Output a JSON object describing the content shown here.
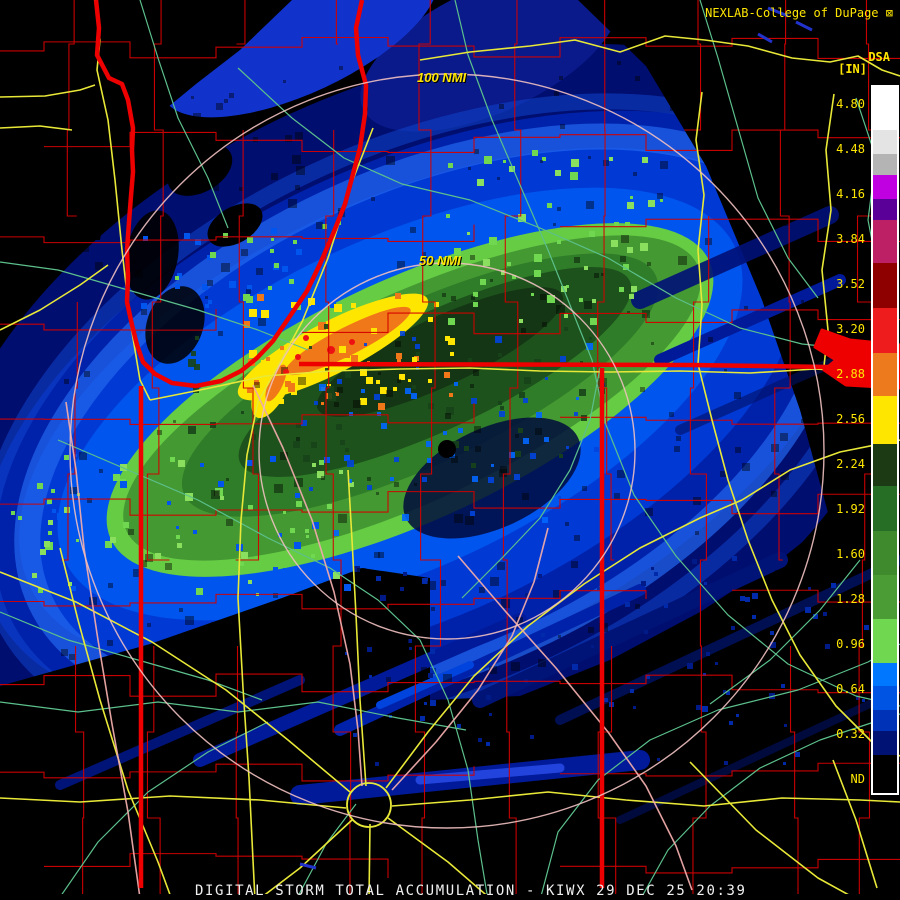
{
  "header": {
    "title": "NEXLAB-College of DuPage",
    "window_glyph": "⊠"
  },
  "product": {
    "code": "DSA",
    "unit": "[IN]"
  },
  "rings": {
    "outer_label": "100 NMI",
    "inner_label": "50 NMI"
  },
  "footer": {
    "caption": "DIGITAL STORM TOTAL ACCUMULATION - KIWX 29 DEC 25 20:39"
  },
  "colorbar": {
    "labels": [
      "4.80",
      "4.48",
      "4.16",
      "3.84",
      "3.52",
      "3.20",
      "2.88",
      "2.56",
      "2.24",
      "1.92",
      "1.60",
      "1.28",
      "0.96",
      "0.64",
      "0.32",
      "ND"
    ],
    "segments": [
      {
        "c": "#ffffff",
        "h": 43
      },
      {
        "c": "#e4e4e4",
        "h": 24
      },
      {
        "c": "#b4b4b4",
        "h": 21
      },
      {
        "c": "#c000e0",
        "h": 24
      },
      {
        "c": "#5a0099",
        "h": 21
      },
      {
        "c": "#bd2064",
        "h": 43
      },
      {
        "c": "#8e0000",
        "h": 45
      },
      {
        "c": "#ee1c1c",
        "h": 45
      },
      {
        "c": "#ee7a1e",
        "h": 43
      },
      {
        "c": "#ffe600",
        "h": 48
      },
      {
        "c": "#1c3b15",
        "h": 42
      },
      {
        "c": "#266e26",
        "h": 45
      },
      {
        "c": "#3e8a2c",
        "h": 44
      },
      {
        "c": "#4c9c36",
        "h": 44
      },
      {
        "c": "#70d850",
        "h": 44
      },
      {
        "c": "#0077ff",
        "h": 23
      },
      {
        "c": "#0054e4",
        "h": 24
      },
      {
        "c": "#0032b8",
        "h": 21
      },
      {
        "c": "#001274",
        "h": 24
      },
      {
        "c": "#000000",
        "h": 38
      }
    ]
  },
  "colors": {
    "county_border": "#d40000",
    "state_border": "#ee0000",
    "road": "#e8e838",
    "river": "#5cc08c",
    "interstate": "#eeaaaa",
    "range_ring": "#f0c0c0",
    "label_yellow": "#ffe600",
    "caption_white": "#f0f0f0",
    "lake_water": "#2233cc"
  }
}
